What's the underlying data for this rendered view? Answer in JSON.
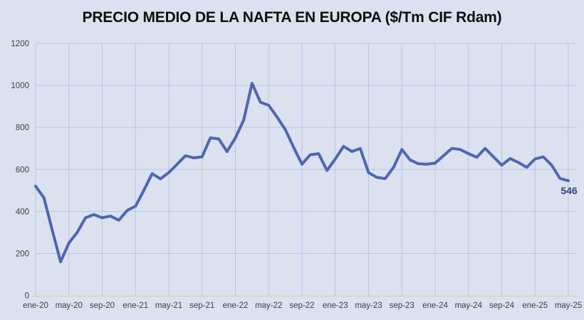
{
  "title": "PRECIO MEDIO DE LA NAFTA EN EUROPA ($/Tm CIF Rdam)",
  "chart_data": {
    "type": "line",
    "title": "PRECIO MEDIO DE LA NAFTA EN EUROPA ($/Tm CIF Rdam)",
    "xlabel": "",
    "ylabel": "",
    "ylim": [
      0,
      1200
    ],
    "ytick_step": 200,
    "grid": true,
    "legend_position": "none",
    "x": [
      "ene-20",
      "feb-20",
      "mar-20",
      "abr-20",
      "may-20",
      "jun-20",
      "jul-20",
      "ago-20",
      "sep-20",
      "oct-20",
      "nov-20",
      "dic-20",
      "ene-21",
      "feb-21",
      "mar-21",
      "abr-21",
      "may-21",
      "jun-21",
      "jul-21",
      "ago-21",
      "sep-21",
      "oct-21",
      "nov-21",
      "dic-21",
      "ene-22",
      "feb-22",
      "mar-22",
      "abr-22",
      "may-22",
      "jun-22",
      "jul-22",
      "ago-22",
      "sep-22",
      "oct-22",
      "nov-22",
      "dic-22",
      "ene-23",
      "feb-23",
      "mar-23",
      "abr-23",
      "may-23",
      "jun-23",
      "jul-23",
      "ago-23",
      "sep-23",
      "oct-23",
      "nov-23",
      "dic-23",
      "ene-24",
      "feb-24",
      "mar-24",
      "abr-24",
      "may-24",
      "jun-24",
      "jul-24",
      "ago-24",
      "sep-24",
      "oct-24",
      "nov-24",
      "dic-24",
      "ene-25",
      "feb-25",
      "mar-25",
      "abr-25",
      "may-25"
    ],
    "series": [
      {
        "name": "Precio medio de la nafta ($/Tm CIF Rdam)",
        "values": [
          520,
          465,
          310,
          160,
          250,
          300,
          370,
          385,
          370,
          378,
          358,
          405,
          425,
          500,
          580,
          555,
          585,
          625,
          665,
          655,
          660,
          750,
          745,
          685,
          750,
          835,
          1010,
          920,
          905,
          850,
          790,
          705,
          625,
          670,
          675,
          595,
          650,
          710,
          685,
          700,
          585,
          562,
          556,
          610,
          695,
          645,
          627,
          625,
          630,
          665,
          700,
          695,
          675,
          658,
          700,
          660,
          620,
          652,
          633,
          610,
          650,
          660,
          620,
          557,
          546
        ]
      }
    ],
    "x_tick_labels": [
      "ene-20",
      "may-20",
      "sep-20",
      "ene-21",
      "may-21",
      "sep-21",
      "ene-22",
      "may-22",
      "sep-22",
      "ene-23",
      "may-23",
      "sep-23",
      "ene-24",
      "may-24",
      "sep-24",
      "ene-25",
      "may-25"
    ],
    "x_tick_every": 4,
    "end_label": "546",
    "colors": {
      "background": "#dce1f0",
      "line": "#4f66b0",
      "gridline": "#b7c5e3",
      "axis_line": "#d9d5c9",
      "tick_text": "#3f3f3f",
      "end_label_text": "#2f4579",
      "title_text": "#0d0d0d"
    }
  }
}
